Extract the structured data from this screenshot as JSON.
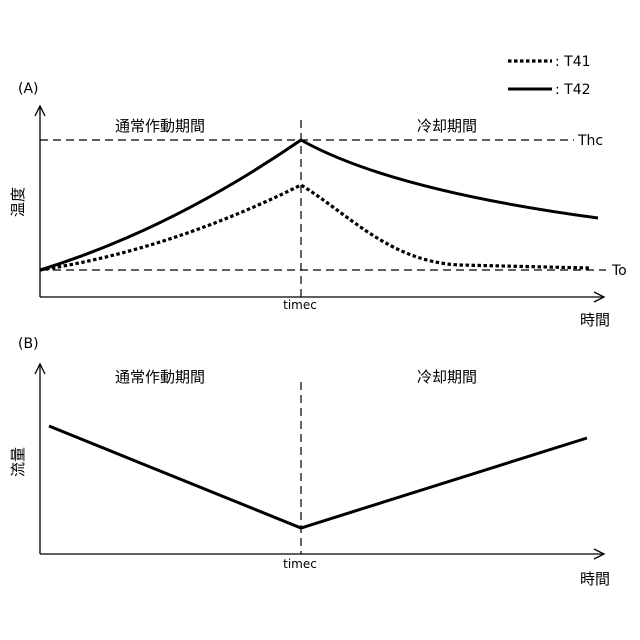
{
  "legend": {
    "items": [
      {
        "label": ": T41",
        "style": "dotted"
      },
      {
        "label": ": T42",
        "style": "solid"
      }
    ]
  },
  "panelA": {
    "tag": "(A)",
    "period_left": "通常作動期間",
    "period_right": "冷却期間",
    "ylabel": "温度",
    "xlabel": "時間",
    "x_marker": "timec",
    "ref_high": "Thc",
    "ref_low": "To"
  },
  "panelB": {
    "tag": "(B)",
    "period_left": "通常作動期間",
    "period_right": "冷却期間",
    "ylabel": "流量",
    "xlabel": "時間",
    "x_marker": "timec"
  },
  "colors": {
    "line": "#000000",
    "background": "#ffffff"
  }
}
